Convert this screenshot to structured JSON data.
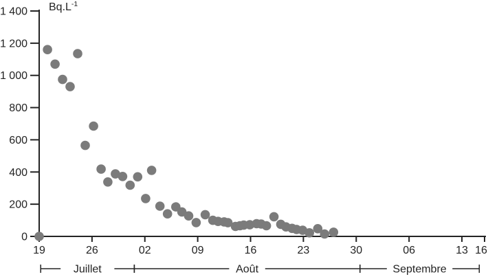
{
  "chart_data": {
    "type": "scatter",
    "title": "",
    "ylabel": "Bq.L-1",
    "ylabel_base": "Bq.L",
    "ylabel_sup": "-1",
    "xlabel": "",
    "ylim": [
      0,
      1400
    ],
    "xlim_days": [
      0,
      59
    ],
    "x_unit": "days since 19 July",
    "grid": false,
    "legend": "none",
    "point_color": "#7b7b7b",
    "axis_color": "#232323",
    "y_ticks": [
      {
        "value": 0,
        "label": "0"
      },
      {
        "value": 200,
        "label": "200"
      },
      {
        "value": 400,
        "label": "400"
      },
      {
        "value": 600,
        "label": "600"
      },
      {
        "value": 800,
        "label": "800"
      },
      {
        "value": 1000,
        "label": "1 000"
      },
      {
        "value": 1200,
        "label": "1 200"
      },
      {
        "value": 1400,
        "label": "1 400"
      }
    ],
    "x_ticks": [
      {
        "day": 0,
        "label": "19"
      },
      {
        "day": 7,
        "label": "26"
      },
      {
        "day": 14,
        "label": "02"
      },
      {
        "day": 21,
        "label": "09"
      },
      {
        "day": 28,
        "label": "16"
      },
      {
        "day": 35,
        "label": "23"
      },
      {
        "day": 42,
        "label": "30"
      },
      {
        "day": 49,
        "label": "06"
      },
      {
        "day": 56,
        "label": "13"
      },
      {
        "day": 59,
        "label": "16"
      }
    ],
    "months": [
      {
        "label": "Juillet",
        "start_day": 0.2,
        "end_day": 12.6
      },
      {
        "label": "Août",
        "start_day": 12.6,
        "end_day": 42.5
      },
      {
        "label": "Septembre",
        "start_day": 42.5,
        "end_day": 58.3
      }
    ],
    "points": [
      {
        "day": 0,
        "value": 0
      },
      {
        "day": 1.1,
        "value": 1160
      },
      {
        "day": 2.1,
        "value": 1070
      },
      {
        "day": 3.1,
        "value": 975
      },
      {
        "day": 4.1,
        "value": 930
      },
      {
        "day": 5.1,
        "value": 1135
      },
      {
        "day": 6.1,
        "value": 565
      },
      {
        "day": 7.2,
        "value": 685
      },
      {
        "day": 8.2,
        "value": 418
      },
      {
        "day": 9.1,
        "value": 338
      },
      {
        "day": 10.1,
        "value": 388
      },
      {
        "day": 11.05,
        "value": 372
      },
      {
        "day": 12.05,
        "value": 318
      },
      {
        "day": 13.05,
        "value": 370
      },
      {
        "day": 14.1,
        "value": 235
      },
      {
        "day": 14.9,
        "value": 410
      },
      {
        "day": 16.0,
        "value": 188
      },
      {
        "day": 17.0,
        "value": 140
      },
      {
        "day": 18.1,
        "value": 183
      },
      {
        "day": 18.9,
        "value": 152
      },
      {
        "day": 19.8,
        "value": 127
      },
      {
        "day": 20.8,
        "value": 86
      },
      {
        "day": 22.0,
        "value": 135
      },
      {
        "day": 23.0,
        "value": 100
      },
      {
        "day": 23.7,
        "value": 93
      },
      {
        "day": 24.5,
        "value": 90
      },
      {
        "day": 25.0,
        "value": 85
      },
      {
        "day": 26.0,
        "value": 62
      },
      {
        "day": 26.6,
        "value": 66
      },
      {
        "day": 27.1,
        "value": 70
      },
      {
        "day": 27.9,
        "value": 72
      },
      {
        "day": 28.8,
        "value": 79
      },
      {
        "day": 29.4,
        "value": 77
      },
      {
        "day": 30.1,
        "value": 66
      },
      {
        "day": 31.1,
        "value": 122
      },
      {
        "day": 32.0,
        "value": 75
      },
      {
        "day": 32.7,
        "value": 59
      },
      {
        "day": 33.5,
        "value": 50
      },
      {
        "day": 34.1,
        "value": 43
      },
      {
        "day": 34.9,
        "value": 38
      },
      {
        "day": 35.8,
        "value": 22
      },
      {
        "day": 36.9,
        "value": 48
      },
      {
        "day": 37.8,
        "value": 15
      },
      {
        "day": 39.0,
        "value": 26
      }
    ]
  }
}
